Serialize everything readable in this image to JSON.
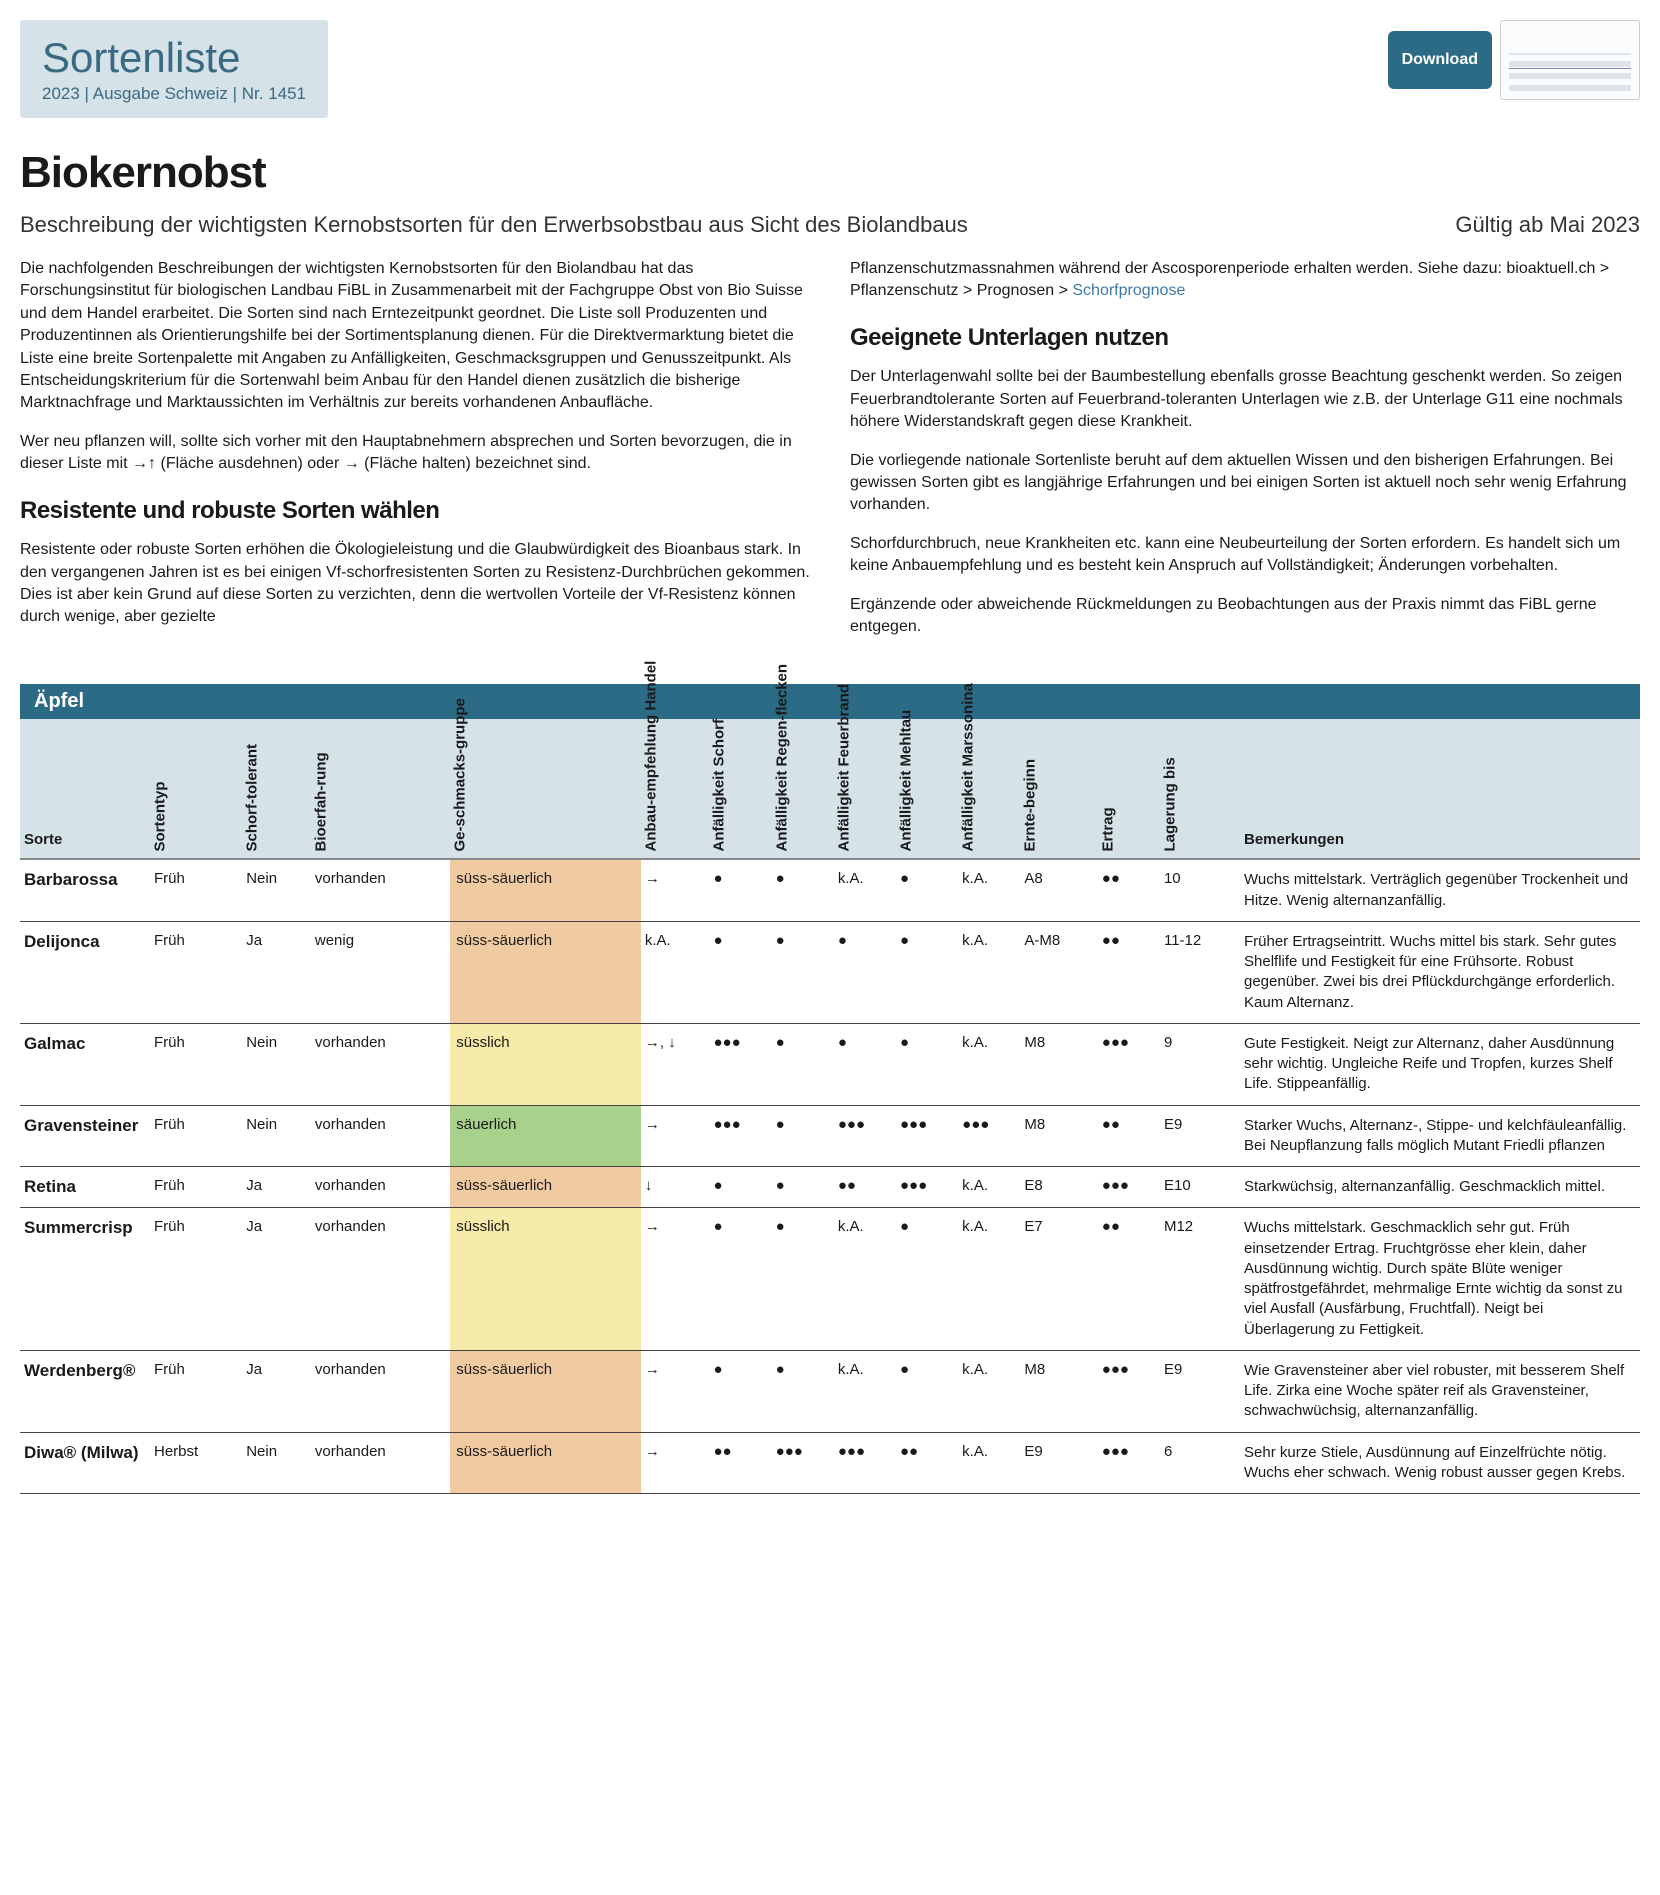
{
  "header": {
    "site": "Sortenliste",
    "meta": "2023 | Ausgabe Schweiz | Nr. 1451",
    "download": "Download"
  },
  "title": "Biokernobst",
  "subtitle_left": "Beschreibung der wichtigsten Kernobstsorten für den Erwerbsobstbau aus Sicht des Biolandbaus",
  "subtitle_right": "Gültig ab Mai 2023",
  "left_col": {
    "p1": "Die nachfolgenden Beschreibungen der wichtigsten Kernobstsorten für den Biolandbau hat das Forschungsinstitut für biologischen Landbau FiBL in Zusammenarbeit mit der Fachgruppe Obst von Bio Suisse und dem Handel erarbeitet. Die Sorten sind nach Erntezeitpunkt geordnet. Die Liste soll Produzenten und Produzentinnen als Orientierungshilfe bei der Sortimentsplanung dienen. Für die Direktvermarktung bietet die Liste eine breite Sortenpalette mit Angaben zu Anfälligkeiten, Geschmacksgruppen und Genusszeitpunkt. Als Entscheidungskriterium für die Sortenwahl beim Anbau für den Handel dienen zusätzlich die bisherige Marktnachfrage und Marktaussichten im Verhältnis zur bereits vorhandenen Anbaufläche.",
    "p2": "Wer neu pflanzen will, sollte sich vorher mit den Hauptabnehmern absprechen und Sorten bevorzugen, die in dieser Liste mit →↑ (Fläche ausdehnen) oder → (Fläche halten) bezeichnet sind.",
    "h_res": "Resistente und robuste Sorten wählen",
    "p3": "Resistente oder robuste Sorten erhöhen die Ökologieleistung und die Glaubwürdigkeit des Bioanbaus stark. In den vergangenen Jahren ist es bei einigen Vf-schorfresistenten Sorten zu Resistenz-Durchbrüchen gekommen. Dies ist aber kein Grund auf diese Sorten zu verzichten, denn die wertvollen Vorteile der Vf-Resistenz können durch wenige, aber gezielte"
  },
  "right_col": {
    "p1a": "Pflanzenschutzmassnahmen während der Ascosporenperiode erhalten werden. Siehe dazu: bioaktuell.ch > Pflanzenschutz > Prognosen > ",
    "link": "Schorfprognose",
    "h_unt": "Geeignete Unterlagen nutzen",
    "p2": "Der Unterlagenwahl sollte bei der Baumbestellung ebenfalls grosse Beachtung geschenkt werden. So zeigen Feuerbrandtolerante Sorten auf Feuerbrand-toleranten Unterlagen wie z.B. der Unterlage G11 eine nochmals höhere Widerstandskraft gegen diese Krankheit.",
    "p3": "Die vorliegende nationale Sortenliste beruht auf dem aktuellen Wissen und den bisherigen Erfahrungen. Bei gewissen Sorten gibt es langjährige Erfahrungen und bei einigen Sorten ist aktuell noch sehr wenig Erfahrung vorhanden.",
    "p4": "Schorfdurchbruch, neue Krankheiten etc. kann eine Neubeurteilung der Sorten erfordern. Es handelt sich um keine Anbauempfehlung und es besteht kein Anspruch auf Vollständigkeit; Änderungen vorbehalten.",
    "p5": "Ergänzende oder abweichende Rückmeldungen zu Beobachtungen aus der Praxis nimmt das FiBL gerne entgegen."
  },
  "table": {
    "section": "Äpfel",
    "headers": {
      "sorte": "Sorte",
      "sortentyp": "Sortentyp",
      "schorf": "Schorf-tolerant",
      "bioerf": "Bioerfah-rung",
      "taste": "Ge-schmacks-gruppe",
      "anbau": "Anbau-empfehlung Handel",
      "a_schorf": "Anfälligkeit Schorf",
      "a_regen": "Anfälligkeit Regen-flecken",
      "a_feuer": "Anfälligkeit Feuerbrand",
      "a_mehl": "Anfälligkeit Mehltau",
      "a_mars": "Anfälligkeit Marssonina",
      "ernte": "Ernte-beginn",
      "ertrag": "Ertrag",
      "lager": "Lagerung bis",
      "bem": "Bemerkungen"
    },
    "taste_colors": {
      "süss-säuerlich": "g-ss",
      "süsslich": "g-su",
      "säuerlich": "g-sa"
    },
    "rows": [
      {
        "sorte": "Barbarossa",
        "typ": "Früh",
        "schorf": "Nein",
        "bio": "vorhanden",
        "taste": "süss-säuerlich",
        "anbau": "→",
        "a_schorf": "●",
        "a_regen": "●",
        "a_feuer": "k.A.",
        "a_mehl": "●",
        "a_mars": "k.A.",
        "ernte": "A8",
        "ertrag": "●●",
        "lager": "10",
        "bem": "Wuchs mittelstark. Verträglich gegenüber Trockenheit und Hitze. Wenig alternanzanfällig."
      },
      {
        "sorte": "Delijonca",
        "typ": "Früh",
        "schorf": "Ja",
        "bio": "wenig",
        "taste": "süss-säuerlich",
        "anbau": "k.A.",
        "a_schorf": "●",
        "a_regen": "●",
        "a_feuer": "●",
        "a_mehl": "●",
        "a_mars": "k.A.",
        "ernte": "A-M8",
        "ertrag": "●●",
        "lager": "11-12",
        "bem": "Früher Ertragseintritt. Wuchs mittel bis stark. Sehr gutes Shelflife und Festigkeit für eine Frühsorte. Robust gegenüber. Zwei bis drei Pflückdurchgänge erforderlich. Kaum Alternanz."
      },
      {
        "sorte": "Galmac",
        "typ": "Früh",
        "schorf": "Nein",
        "bio": "vorhanden",
        "taste": "süsslich",
        "anbau": "→, ↓",
        "a_schorf": "●●●",
        "a_regen": "●",
        "a_feuer": "●",
        "a_mehl": "●",
        "a_mars": "k.A.",
        "ernte": "M8",
        "ertrag": "●●●",
        "lager": "9",
        "bem": "Gute Festigkeit. Neigt zur Alternanz, daher Ausdünnung sehr wichtig. Ungleiche Reife und Tropfen, kurzes Shelf Life. Stippeanfällig."
      },
      {
        "sorte": "Gravensteiner",
        "typ": "Früh",
        "schorf": "Nein",
        "bio": "vorhanden",
        "taste": "säuerlich",
        "anbau": "→",
        "a_schorf": "●●●",
        "a_regen": "●",
        "a_feuer": "●●●",
        "a_mehl": "●●●",
        "a_mars": "●●●",
        "ernte": "M8",
        "ertrag": "●●",
        "lager": "E9",
        "bem": "Starker Wuchs, Alternanz-, Stippe- und kelchfäuleanfällig. Bei Neupflanzung falls möglich Mutant Friedli pflanzen"
      },
      {
        "sorte": "Retina",
        "typ": "Früh",
        "schorf": "Ja",
        "bio": "vorhanden",
        "taste": "süss-säuerlich",
        "anbau": "↓",
        "a_schorf": "●",
        "a_regen": "●",
        "a_feuer": "●●",
        "a_mehl": "●●●",
        "a_mars": "k.A.",
        "ernte": "E8",
        "ertrag": "●●●",
        "lager": "E10",
        "bem": "Starkwüchsig, alternanzanfällig. Geschmacklich mittel."
      },
      {
        "sorte": "Summercrisp",
        "typ": "Früh",
        "schorf": "Ja",
        "bio": "vorhanden",
        "taste": "süsslich",
        "anbau": "→",
        "a_schorf": "●",
        "a_regen": "●",
        "a_feuer": "k.A.",
        "a_mehl": "●",
        "a_mars": "k.A.",
        "ernte": "E7",
        "ertrag": "●●",
        "lager": "M12",
        "bem": "Wuchs mittelstark. Geschmacklich sehr gut. Früh einsetzender Ertrag. Fruchtgrösse eher klein, daher Ausdünnung wichtig. Durch späte Blüte weniger spätfrostgefährdet, mehrmalige Ernte wichtig da sonst zu viel Ausfall (Ausfärbung, Fruchtfall). Neigt bei Überlagerung zu Fettigkeit."
      },
      {
        "sorte": "Werdenberg®",
        "typ": "Früh",
        "schorf": "Ja",
        "bio": "vorhanden",
        "taste": "süss-säuerlich",
        "anbau": "→",
        "a_schorf": "●",
        "a_regen": "●",
        "a_feuer": "k.A.",
        "a_mehl": "●",
        "a_mars": "k.A.",
        "ernte": "M8",
        "ertrag": "●●●",
        "lager": "E9",
        "bem": "Wie Gravensteiner aber viel robuster, mit besserem Shelf Life. Zirka eine Woche später reif als Gravensteiner, schwachwüchsig, alternanzanfällig."
      },
      {
        "sorte": "Diwa® (Milwa)",
        "typ": "Herbst",
        "schorf": "Nein",
        "bio": "vorhanden",
        "taste": "süss-säuerlich",
        "anbau": "→",
        "a_schorf": "●●",
        "a_regen": "●●●",
        "a_feuer": "●●●",
        "a_mehl": "●●",
        "a_mars": "k.A.",
        "ernte": "E9",
        "ertrag": "●●●",
        "lager": "6",
        "bem": "Sehr kurze Stiele, Ausdünnung auf Einzelfrüchte nötig. Wuchs eher schwach. Wenig robust ausser gegen Krebs."
      }
    ]
  }
}
